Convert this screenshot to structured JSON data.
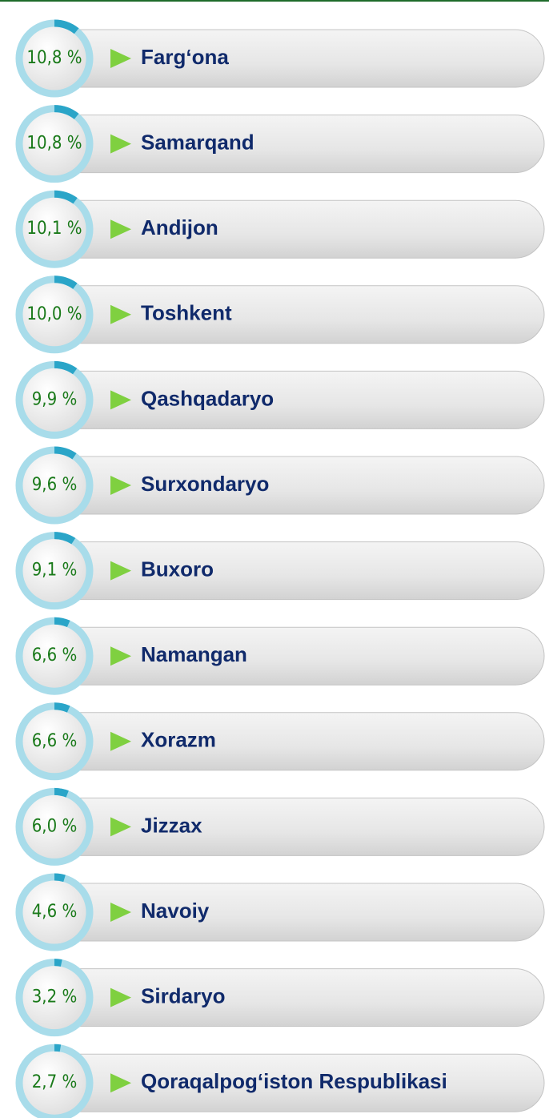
{
  "chart_data": {
    "type": "radial",
    "categories": [
      "Farg‘ona",
      "Samarqand",
      "Andijon",
      "Toshkent",
      "Qashqadaryo",
      "Surxondaryo",
      "Buxoro",
      "Namangan",
      "Xorazm",
      "Jizzax",
      "Navoiy",
      "Sirdaryo",
      "Qoraqalpog‘iston Respublikasi"
    ],
    "values": [
      10.8,
      10.8,
      10.1,
      10.0,
      9.9,
      9.6,
      9.1,
      6.6,
      6.6,
      6.0,
      4.6,
      3.2,
      2.7
    ],
    "value_labels": [
      "10,8 %",
      "10,8 %",
      "10,1 %",
      "10,0 %",
      "9,9 %",
      "9,6 %",
      "9,1 %",
      "6,6 %",
      "6,6 %",
      "6,0 %",
      "4,6 %",
      "3,2 %",
      "2,7 %"
    ],
    "color": "#2aa5c8"
  }
}
